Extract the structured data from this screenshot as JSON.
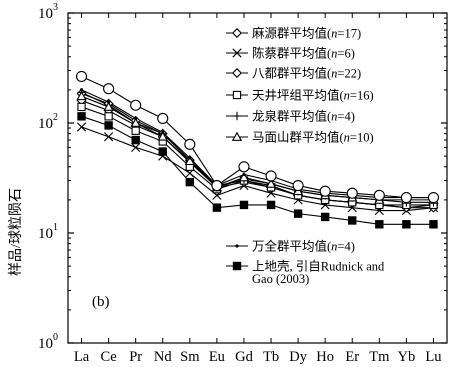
{
  "chart_data": {
    "type": "line",
    "ylabel": "样品/球粒陨石",
    "yscale": "log",
    "ylim": [
      1,
      1000
    ],
    "panel_label": "(b)",
    "y_ticks": [
      {
        "value": 1,
        "base": "10",
        "exp": "0"
      },
      {
        "value": 10,
        "base": "10",
        "exp": "1"
      },
      {
        "value": 100,
        "base": "10",
        "exp": "2"
      },
      {
        "value": 1000,
        "base": "10",
        "exp": "3"
      }
    ],
    "categories": [
      "La",
      "Ce",
      "Pr",
      "Nd",
      "Sm",
      "Eu",
      "Gd",
      "Tb",
      "Dy",
      "Ho",
      "Er",
      "Tm",
      "Yb",
      "Lu"
    ],
    "series": [
      {
        "name_prefix": "麻源群平均值(",
        "name_italic": "n",
        "name_suffix": "=17)",
        "marker": "diamond",
        "values": [
          185,
          150,
          105,
          80,
          46,
          27,
          30,
          27,
          22,
          20,
          19,
          18,
          17,
          18
        ]
      },
      {
        "name_prefix": "陈蔡群平均值(",
        "name_italic": "n",
        "name_suffix": "=6)",
        "marker": "x",
        "values": [
          92,
          75,
          60,
          50,
          35,
          22,
          27,
          23,
          20,
          18,
          17,
          16,
          16,
          17
        ]
      },
      {
        "name_prefix": "八都群平均值(",
        "name_italic": "n",
        "name_suffix": "=22)",
        "marker": "diamond",
        "values": [
          160,
          130,
          95,
          75,
          44,
          26,
          29,
          26,
          22,
          20,
          19,
          18,
          17,
          17
        ]
      },
      {
        "name_prefix": "天井坪组平均值(",
        "name_italic": "n",
        "name_suffix": "=16)",
        "marker": "square-open",
        "values": [
          140,
          115,
          85,
          68,
          40,
          25,
          30,
          26,
          22,
          20,
          19,
          18,
          18,
          18
        ]
      },
      {
        "name_prefix": "龙泉群平均值(",
        "name_italic": "n",
        "name_suffix": "=4)",
        "marker": "plus",
        "values": [
          190,
          145,
          100,
          80,
          46,
          26,
          31,
          28,
          24,
          22,
          21,
          20,
          19,
          19
        ]
      },
      {
        "name_prefix": "马面山群平均值(",
        "name_italic": "n",
        "name_suffix": "=10)",
        "marker": "triangle-open",
        "values": [
          175,
          140,
          100,
          75,
          45,
          26,
          32,
          28,
          24,
          22,
          21,
          20,
          20,
          20
        ]
      },
      {
        "name_prefix": "万全群平均值(",
        "name_italic": "n",
        "name_suffix": "=4)",
        "marker": "dot",
        "values": [
          200,
          155,
          110,
          82,
          48,
          27,
          34,
          30,
          25,
          23,
          22,
          21,
          21,
          21
        ]
      },
      {
        "name_line1": "上地壳, 引自Rudnick and",
        "name_line2": "Gao (2003)",
        "marker": "square-filled",
        "values": [
          115,
          95,
          70,
          55,
          29,
          17,
          18,
          18,
          15,
          14,
          13,
          12,
          12,
          12
        ]
      },
      {
        "marker": "circle-open",
        "values": [
          265,
          205,
          145,
          110,
          64,
          27,
          40,
          33,
          27,
          24,
          23,
          22,
          21,
          21
        ]
      }
    ]
  }
}
